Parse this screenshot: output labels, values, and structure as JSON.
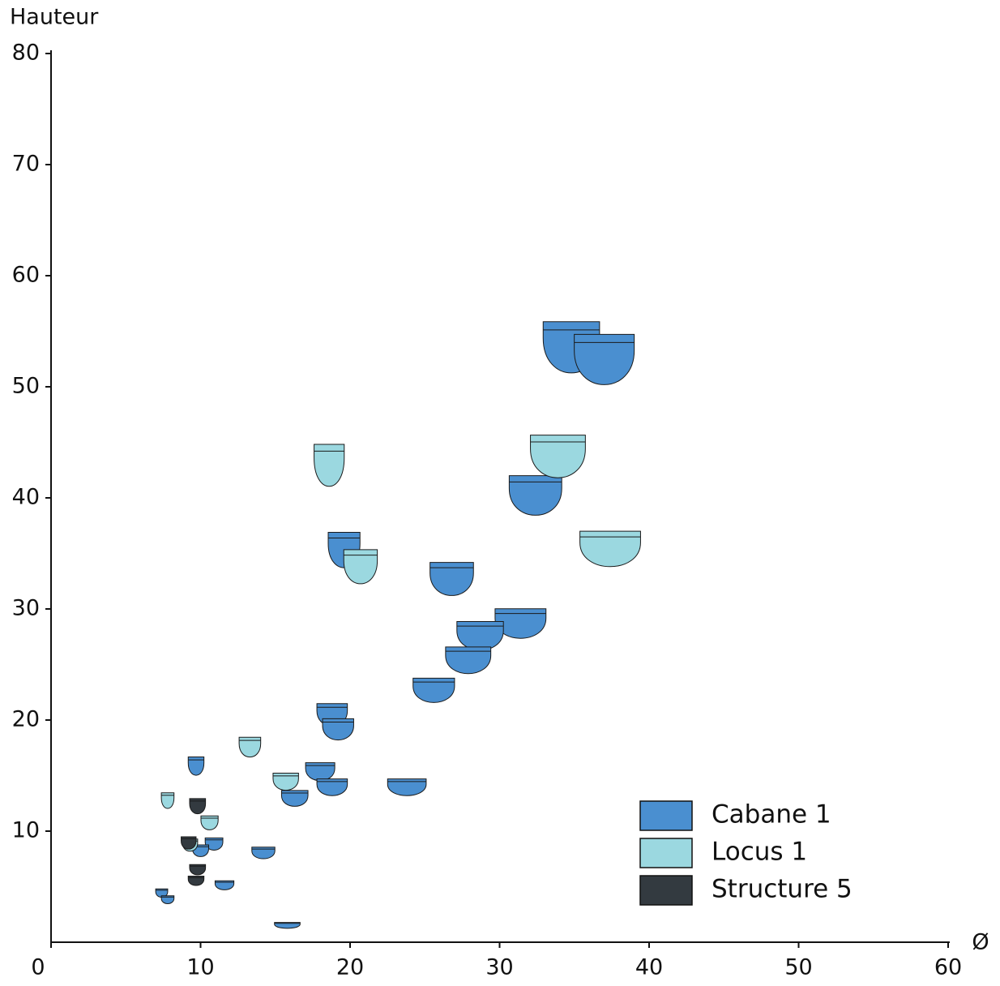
{
  "chart_data": {
    "type": "scatter",
    "x_label": "Ø",
    "y_label": "Hauteur",
    "xlim": [
      0,
      60
    ],
    "ylim": [
      0,
      80
    ],
    "xticks": [
      0,
      10,
      20,
      30,
      40,
      50,
      60
    ],
    "yticks": [
      10,
      20,
      30,
      40,
      50,
      60,
      70,
      80
    ],
    "legend": "bottom-right",
    "series": [
      {
        "name": "Cabane 1",
        "color": "#4a8fd0",
        "x": [
          34.8,
          37.0,
          32.4,
          19.6,
          26.8,
          31.4,
          28.7,
          27.9,
          25.6,
          18.8,
          19.2,
          9.7,
          18.0,
          18.8,
          23.8,
          16.3,
          10.9,
          10.0,
          14.2,
          7.4,
          7.8,
          11.6,
          15.8
        ],
        "y": [
          53.4,
          52.3,
          40.1,
          35.2,
          32.6,
          28.6,
          27.5,
          25.3,
          22.6,
          20.4,
          19.1,
          15.8,
          15.3,
          13.9,
          13.9,
          12.9,
          8.8,
          8.2,
          8.0,
          4.4,
          3.8,
          5.1,
          1.5
        ]
      },
      {
        "name": "Locus 1",
        "color": "#9bd8e0",
        "x": [
          18.6,
          33.9,
          37.4,
          20.7,
          13.3,
          15.7,
          7.8,
          10.6,
          9.3
        ],
        "y": [
          42.8,
          43.6,
          35.3,
          33.7,
          17.5,
          14.4,
          12.7,
          10.7,
          8.7
        ]
      },
      {
        "name": "Structure 5",
        "color": "#333a40",
        "x": [
          9.8,
          9.2,
          9.8,
          9.7
        ],
        "y": [
          12.2,
          8.9,
          6.5,
          5.5
        ]
      }
    ]
  }
}
